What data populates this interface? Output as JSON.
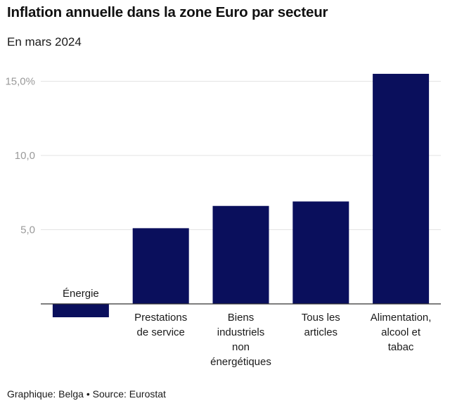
{
  "header": {
    "title": "Inflation annuelle dans la zone Euro par secteur",
    "subtitle": "En mars 2024"
  },
  "footer": {
    "credit": "Graphique: Belga • Source: Eurostat"
  },
  "colors": {
    "bar": "#0a0f5c",
    "grid": "#e3e3e3",
    "axis": "#333333",
    "tick_text": "#9a9a9a"
  },
  "chart_data": {
    "type": "bar",
    "title": "Inflation annuelle dans la zone Euro par secteur",
    "subtitle": "En mars 2024",
    "categories": [
      [
        "Énergie"
      ],
      [
        "Prestations",
        "de service"
      ],
      [
        "Biens",
        "industriels",
        "non",
        "énergétiques"
      ],
      [
        "Tous les",
        "articles"
      ],
      [
        "Alimentation,",
        "alcool et",
        "tabac"
      ]
    ],
    "values": [
      -0.9,
      5.1,
      6.6,
      6.9,
      15.5
    ],
    "ylim": [
      -1,
      16.2
    ],
    "yticks": [
      {
        "value": 5,
        "label": "5,0"
      },
      {
        "value": 10,
        "label": "10,0"
      },
      {
        "value": 15,
        "label": "15,0%"
      }
    ],
    "grid": true,
    "xlabel": "",
    "ylabel": ""
  }
}
